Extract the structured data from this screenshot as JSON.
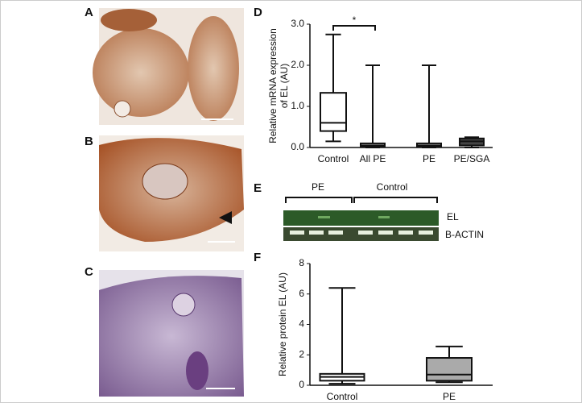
{
  "panels": {
    "a": "A",
    "b": "B",
    "c": "C",
    "d": "D",
    "e": "E",
    "f": "F"
  },
  "blot": {
    "groups": [
      "PE",
      "Control"
    ],
    "bands": [
      "EL",
      "B-ACTIN"
    ]
  },
  "chart_data": [
    {
      "type": "box",
      "ylabel": [
        "Relative mRNA expression",
        "of EL (AU)"
      ],
      "categories": [
        "Control",
        "All PE",
        "PE",
        "PE/SGA"
      ],
      "boxes": [
        {
          "min": 0.15,
          "q1": 0.4,
          "median": 0.6,
          "q3": 1.33,
          "max": 2.75,
          "color": "#ffffff"
        },
        {
          "min": 0,
          "q1": 0.02,
          "median": 0.05,
          "q3": 0.1,
          "max": 2.0,
          "color": "#bbbbbb"
        },
        {
          "min": 0,
          "q1": 0.02,
          "median": 0.05,
          "q3": 0.1,
          "max": 2.0,
          "color": "#bbbbbb"
        },
        {
          "min": 0,
          "q1": 0.05,
          "median": 0.15,
          "q3": 0.22,
          "max": 0.25,
          "color": "#444444"
        }
      ],
      "annotation": "*",
      "ylim": [
        0,
        3
      ],
      "yticks": [
        {
          "value": 0,
          "label": "0.0"
        },
        {
          "value": 1,
          "label": "1.0"
        },
        {
          "value": 2,
          "label": "2.0"
        },
        {
          "value": 3,
          "label": "3.0"
        }
      ]
    },
    {
      "type": "box",
      "ylabel": [
        "Relative protein EL (AU)"
      ],
      "categories": [
        "Control",
        "PE"
      ],
      "boxes": [
        {
          "min": 0.1,
          "q1": 0.3,
          "median": 0.55,
          "q3": 0.75,
          "max": 6.4,
          "color": "#ffffff"
        },
        {
          "min": 0.2,
          "q1": 0.3,
          "median": 0.7,
          "q3": 1.8,
          "max": 2.55,
          "color": "#aaaaaa"
        }
      ],
      "ylim": [
        0,
        8
      ],
      "yticks": [
        0,
        2,
        4,
        6,
        8
      ]
    }
  ]
}
